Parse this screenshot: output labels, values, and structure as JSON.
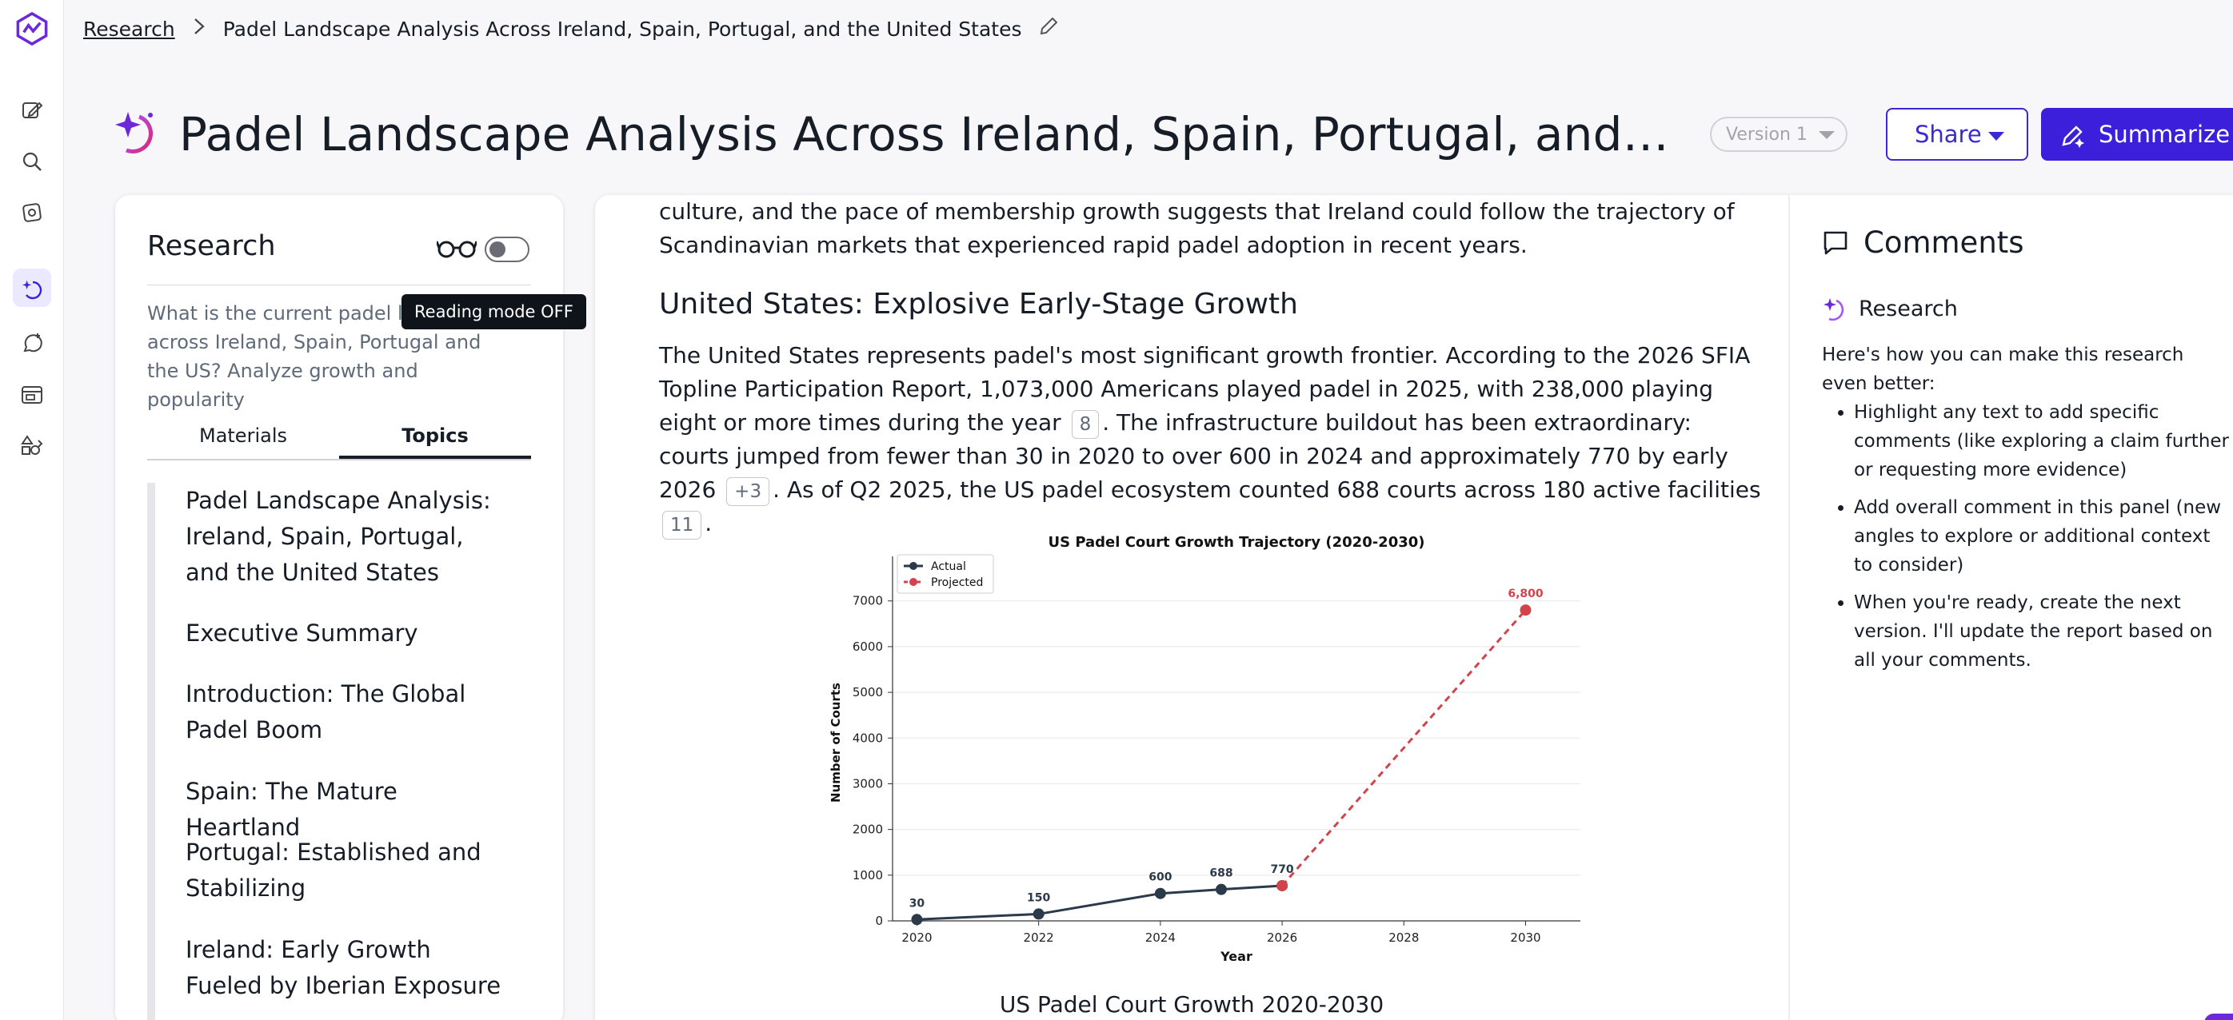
{
  "breadcrumb": {
    "root": "Research",
    "current": "Padel Landscape Analysis Across Ireland, Spain, Portugal, and the United States"
  },
  "header": {
    "title": "Padel Landscape Analysis Across Ireland, Spain, Portugal, and the United States",
    "version_label": "Version 1",
    "share_label": "Share",
    "summarize_label": "Summarize"
  },
  "research_panel": {
    "title": "Research",
    "reading_mode_tooltip": "Reading mode OFF",
    "question": "What is the current padel landscape across Ireland, Spain, Portugal and the US? Analyze growth and popularity",
    "tabs": [
      "Materials",
      "Topics"
    ],
    "selected_tab": "Topics",
    "topics": [
      "Padel Landscape Analysis: Ireland, Spain, Portugal, and the United States",
      "Executive Summary",
      "Introduction: The Global Padel Boom",
      "Spain: The Mature Heartland",
      "Portugal: Established and Stabilizing",
      "Ireland: Early Growth Fueled by Iberian Exposure"
    ]
  },
  "document": {
    "lead_paragraph": "culture, and the pace of membership growth suggests that Ireland could follow the trajectory of Scandinavian markets that experienced rapid padel adoption in recent years.",
    "section_heading": "United States: Explosive Early-Stage Growth",
    "p_part1": "The United States represents padel's most significant growth frontier. According to the 2026 SFIA Topline Participation Report, 1,073,000 Americans played padel in 2025, with 238,000 playing eight or more times during the year",
    "cite1": "8",
    "p_part2": ". The infrastructure buildout has been extraordinary: courts jumped from fewer than 30 in 2020 to over 600 in 2024 and approximately 770 by early 2026",
    "cite2": "+3",
    "p_part3": ". As of Q2 2025, the US padel ecosystem counted 688 courts across 180 active facilities",
    "cite3": "11",
    "p_end": ".",
    "chart_caption": "US Padel Court Growth 2020-2030"
  },
  "chart_data": {
    "type": "line",
    "title": "US Padel Court Growth Trajectory (2020-2030)",
    "xlabel": "Year",
    "ylabel": "Number of Courts",
    "xlim": [
      2019.6,
      2030.9
    ],
    "ylim": [
      0,
      7800
    ],
    "x_ticks": [
      2020,
      2022,
      2024,
      2026,
      2028,
      2030
    ],
    "y_ticks": [
      0,
      1000,
      2000,
      3000,
      4000,
      5000,
      6000,
      7000
    ],
    "grid": true,
    "legend_placement": "top-left",
    "series": [
      {
        "name": "Actual",
        "color": "#2b3a4a",
        "style": "solid",
        "x": [
          2020,
          2022,
          2024,
          2025,
          2026
        ],
        "values": [
          30,
          150,
          600,
          688,
          770
        ],
        "labels": [
          "30",
          "150",
          "600",
          "688",
          "770"
        ]
      },
      {
        "name": "Projected",
        "color": "#d1444b",
        "style": "dashed",
        "x": [
          2026,
          2030
        ],
        "values": [
          770,
          6800
        ],
        "labels": [
          "",
          "6,800"
        ]
      }
    ]
  },
  "comments": {
    "title": "Comments",
    "agent_name": "Research",
    "intro": "Here's how you can make this research even better:",
    "tips": [
      "Highlight any text to add specific comments (like exploring a claim further or requesting more evidence)",
      "Add overall comment in this panel (new angles to explore or additional context to consider)",
      "When you're ready, create the next version. I'll update the report based on all your comments."
    ]
  }
}
